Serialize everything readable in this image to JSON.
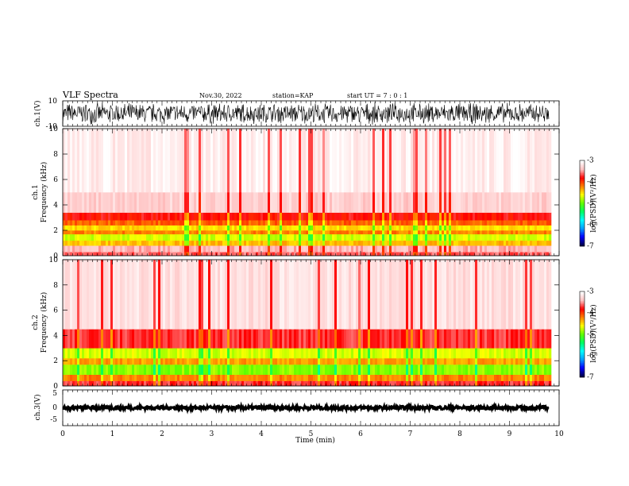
{
  "header": {
    "title": "VLF Spectra",
    "date": "Nov.30, 2022",
    "station": "station=KAP",
    "start": "start UT =  7 : 0  : 1"
  },
  "colors": {
    "background": "#ffffff",
    "axes": "#000000",
    "colormap": [
      "#00004a",
      "#0000ff",
      "#00a0ff",
      "#00ffff",
      "#00ff60",
      "#60ff00",
      "#ffff00",
      "#ff8000",
      "#ff0000",
      "#ffc0c0",
      "#ffffff"
    ]
  },
  "chart_data": [
    {
      "type": "line",
      "name": "ch1-waveform",
      "ylabel": "ch.1(V)",
      "xlim": [
        0,
        10
      ],
      "ylim": [
        -10,
        10
      ],
      "y_ticks": [
        "10",
        "-10"
      ],
      "data_end_min": 9.8,
      "description_values": {
        "approx_amplitude_V": 9
      }
    },
    {
      "type": "heatmap",
      "name": "ch1-spectrogram",
      "ylabel_line1": "ch.1",
      "ylabel_line2": "Frequency (kHz)",
      "xlim": [
        0,
        10
      ],
      "ylim": [
        0,
        10
      ],
      "y_ticks": [
        "0",
        "2",
        "4",
        "6",
        "8",
        "10"
      ],
      "data_end_min": 9.8,
      "log_psd_by_band": [
        {
          "f_kHz": [
            0.0,
            0.3
          ],
          "level": -3.6
        },
        {
          "f_kHz": [
            0.3,
            0.8
          ],
          "level": -3.4
        },
        {
          "f_kHz": [
            0.8,
            1.2
          ],
          "level": -4.4
        },
        {
          "f_kHz": [
            1.2,
            1.7
          ],
          "level": -4.7
        },
        {
          "f_kHz": [
            1.7,
            2.0
          ],
          "level": -4.2
        },
        {
          "f_kHz": [
            2.0,
            2.4
          ],
          "level": -4.5
        },
        {
          "f_kHz": [
            2.4,
            2.8
          ],
          "level": -4.1
        },
        {
          "f_kHz": [
            2.8,
            3.4
          ],
          "level": -3.8
        },
        {
          "f_kHz": [
            3.4,
            5.0
          ],
          "level": -3.3
        },
        {
          "f_kHz": [
            5.0,
            10.0
          ],
          "level": -3.1
        }
      ],
      "colorbar": {
        "label": "log(PSD)(V²/Hz)",
        "ticks": [
          "-3",
          "-4",
          "-5",
          "-6",
          "-7"
        ],
        "range": [
          -7,
          -3
        ]
      }
    },
    {
      "type": "heatmap",
      "name": "ch2-spectrogram",
      "ylabel_line1": "ch.2",
      "ylabel_line2": "Frequency (kHz)",
      "xlim": [
        0,
        10
      ],
      "ylim": [
        0,
        10
      ],
      "y_ticks": [
        "0",
        "2",
        "4",
        "6",
        "8",
        "10"
      ],
      "data_end_min": 9.8,
      "log_psd_by_band": [
        {
          "f_kHz": [
            0.0,
            0.4
          ],
          "level": -3.7
        },
        {
          "f_kHz": [
            0.4,
            0.9
          ],
          "level": -4.2
        },
        {
          "f_kHz": [
            0.9,
            1.7
          ],
          "level": -4.9
        },
        {
          "f_kHz": [
            1.7,
            2.2
          ],
          "level": -4.3
        },
        {
          "f_kHz": [
            2.2,
            3.0
          ],
          "level": -4.7
        },
        {
          "f_kHz": [
            3.0,
            4.5
          ],
          "level": -3.7
        },
        {
          "f_kHz": [
            4.5,
            10.0
          ],
          "level": -3.2
        }
      ],
      "colorbar": {
        "label": "log(PSD)(V²/Hz)",
        "ticks": [
          "-3",
          "-4",
          "-5",
          "-6",
          "-7"
        ],
        "range": [
          -7,
          -3
        ]
      }
    },
    {
      "type": "line",
      "name": "ch3-waveform",
      "ylabel": "ch.3(V)",
      "xlim": [
        0,
        10
      ],
      "ylim": [
        -5,
        5
      ],
      "y_ticks": [
        "5",
        "0",
        "-5"
      ],
      "data_end_min": 9.8,
      "description_values": {
        "approx_center_V": 0,
        "approx_amplitude_V": 0.5
      }
    }
  ],
  "x_axis": {
    "label": "Time (min)",
    "ticks": [
      "0",
      "1",
      "2",
      "3",
      "4",
      "5",
      "6",
      "7",
      "8",
      "9",
      "10"
    ]
  }
}
